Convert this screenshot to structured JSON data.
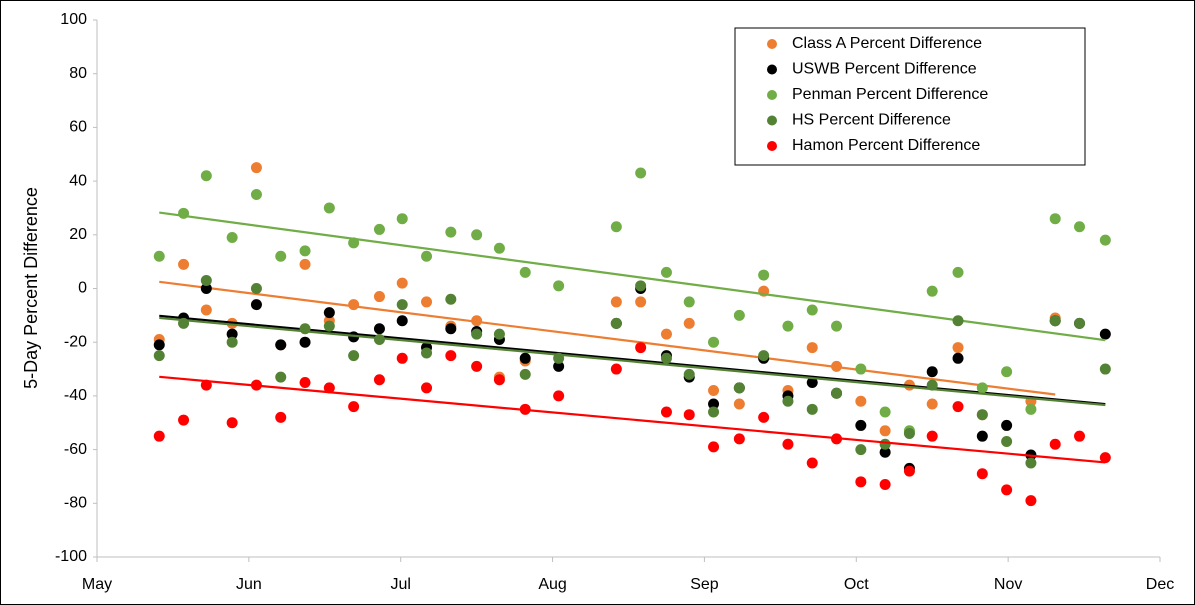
{
  "chart_data": {
    "type": "scatter",
    "y_label": "5-Day Percent Difference",
    "x": [
      5.41,
      5.57,
      5.72,
      5.89,
      6.05,
      6.21,
      6.37,
      6.53,
      6.69,
      6.86,
      7.01,
      7.17,
      7.33,
      7.5,
      7.65,
      7.82,
      8.04,
      8.42,
      8.58,
      8.75,
      8.9,
      9.06,
      9.23,
      9.39,
      9.55,
      9.71,
      9.87,
      10.03,
      10.19,
      10.35,
      10.5,
      10.67,
      10.83,
      10.99,
      11.15,
      11.31,
      11.47,
      11.64
    ],
    "series": [
      {
        "name": "Class A Percent Difference",
        "color": "#ED7D31",
        "values": [
          -19,
          9,
          -8,
          -13,
          45,
          -21,
          9,
          -12,
          -6,
          -3,
          2,
          -5,
          -14,
          -12,
          -33,
          -27,
          null,
          -5,
          -5,
          -17,
          -13,
          -38,
          -43,
          -1,
          -38,
          -22,
          -29,
          -42,
          -53,
          -36,
          -43,
          -22,
          -47,
          null,
          -42,
          -11,
          null,
          null
        ]
      },
      {
        "name": "USWB Percent Difference",
        "color": "#000000",
        "values": [
          -21,
          -11,
          0,
          -17,
          -6,
          -21,
          -20,
          -9,
          -18,
          -15,
          -12,
          -22,
          -15,
          -16,
          -19,
          -26,
          -29,
          -13,
          0,
          -25,
          -33,
          -43,
          -37,
          -26,
          -40,
          -35,
          -39,
          -51,
          -61,
          -67,
          -31,
          -26,
          -55,
          -51,
          -62,
          -12,
          -13,
          -17
        ]
      },
      {
        "name": "Penman Percent Difference",
        "color": "#70AD47",
        "values": [
          12,
          28,
          42,
          19,
          35,
          12,
          14,
          30,
          17,
          22,
          26,
          12,
          21,
          20,
          15,
          6,
          1,
          23,
          43,
          6,
          -5,
          -20,
          -10,
          5,
          -14,
          -8,
          -14,
          -30,
          -46,
          -53,
          -1,
          6,
          -37,
          -31,
          -45,
          26,
          23,
          18
        ]
      },
      {
        "name": "HS Percent Difference",
        "color": "#548235",
        "values": [
          -25,
          -13,
          3,
          -20,
          0,
          -33,
          -15,
          -14,
          -25,
          -19,
          -6,
          -24,
          -4,
          -17,
          -17,
          -32,
          -26,
          -13,
          1,
          -26,
          -32,
          -46,
          -37,
          -25,
          -42,
          -45,
          -39,
          -60,
          -58,
          -54,
          -36,
          -12,
          -47,
          -57,
          -65,
          -12,
          -13,
          -30
        ]
      },
      {
        "name": "Hamon Percent Difference",
        "color": "#FF0000",
        "values": [
          -55,
          -49,
          -36,
          -50,
          -36,
          -48,
          -35,
          -37,
          -44,
          -34,
          -26,
          -37,
          -25,
          -29,
          -34,
          -45,
          -40,
          -30,
          -22,
          -46,
          -47,
          -59,
          -56,
          -48,
          -58,
          -65,
          -56,
          -72,
          -73,
          -68,
          -55,
          -44,
          -69,
          -75,
          -79,
          -58,
          -55,
          -63
        ]
      }
    ],
    "xlim": [
      5,
      12
    ],
    "xticks": [
      {
        "value": 5,
        "label": "May"
      },
      {
        "value": 6,
        "label": "Jun"
      },
      {
        "value": 7,
        "label": "Jul"
      },
      {
        "value": 8,
        "label": "Aug"
      },
      {
        "value": 9,
        "label": "Sep"
      },
      {
        "value": 10,
        "label": "Oct"
      },
      {
        "value": 11,
        "label": "Nov"
      },
      {
        "value": 12,
        "label": "Dec"
      }
    ],
    "ylim": [
      -100,
      100
    ],
    "yticks": [
      -100,
      -80,
      -60,
      -40,
      -20,
      0,
      20,
      40,
      60,
      80,
      100
    ],
    "trendlines": true,
    "legend": "top-right"
  }
}
